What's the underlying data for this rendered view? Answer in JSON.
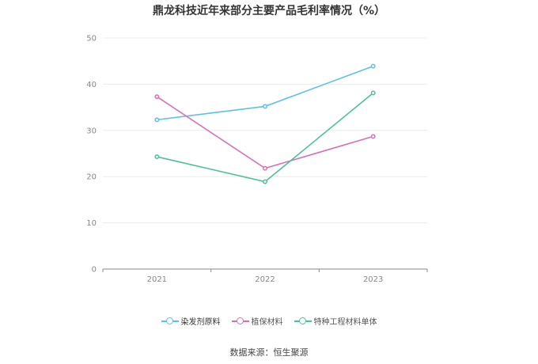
{
  "chart_data": {
    "type": "line",
    "title": "鼎龙科技近年来部分主要产品毛利率情况（%）",
    "categories": [
      "2021",
      "2022",
      "2023"
    ],
    "ylim": [
      0,
      50
    ],
    "yticks": [
      "0",
      "10",
      "20",
      "30",
      "40",
      "50"
    ],
    "grid": true,
    "legend_position": "bottom",
    "series": [
      {
        "name": "染发剂原料",
        "color": "#5bc0eb",
        "values": [
          32.3,
          35.2,
          43.9
        ]
      },
      {
        "name": "植保材料",
        "color": "#d96fb3",
        "values": [
          37.3,
          21.8,
          28.7
        ]
      },
      {
        "name": "特种工程材料单体",
        "color": "#4fbf9f",
        "values": [
          24.3,
          18.9,
          38.1
        ]
      }
    ]
  },
  "source": "数据来源：恒生聚源"
}
